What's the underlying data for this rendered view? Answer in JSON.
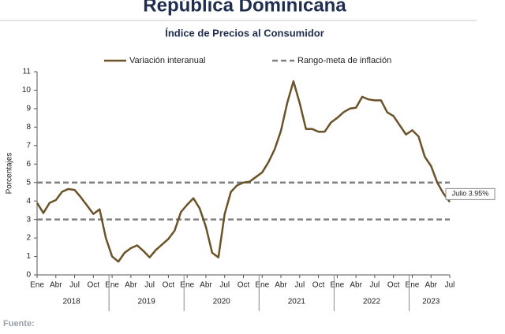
{
  "chart_data": {
    "type": "line",
    "title": "República Dominicana",
    "subtitle": "Índice de Precios al Consumidor",
    "y_label": "Porcentajes",
    "source": "Fuente:",
    "categories": [
      "Ene",
      null,
      null,
      "Abr",
      null,
      null,
      "Jul",
      null,
      null,
      "Oct",
      null,
      null,
      "Ene",
      null,
      null,
      "Abr",
      null,
      null,
      "Jul",
      null,
      null,
      "Oct",
      null,
      null,
      "Ene",
      null,
      null,
      "Abr",
      null,
      null,
      "Jul",
      null,
      null,
      "Oct",
      null,
      null,
      "Ene",
      null,
      null,
      "Abr",
      null,
      null,
      "Jul",
      null,
      null,
      "Oct",
      null,
      null,
      "Ene",
      null,
      null,
      "Abr",
      null,
      null,
      "Jul",
      null,
      null,
      "Oct",
      null,
      null,
      "Ene",
      null,
      null,
      "Abr",
      null,
      null,
      "Jul"
    ],
    "year_labels": [
      "2018",
      "2019",
      "2020",
      "2021",
      "2022",
      "2023"
    ],
    "series": [
      {
        "name": "Variación interanual",
        "color": "#6b5228",
        "values": [
          3.9,
          3.35,
          3.9,
          4.05,
          4.5,
          4.65,
          4.6,
          4.2,
          3.75,
          3.3,
          3.55,
          2.0,
          1.0,
          0.72,
          1.2,
          1.45,
          1.6,
          1.3,
          0.95,
          1.35,
          1.65,
          1.95,
          2.4,
          3.4,
          3.8,
          4.15,
          3.6,
          2.6,
          1.2,
          0.95,
          3.3,
          4.5,
          4.85,
          5.0,
          5.05,
          5.3,
          5.55,
          6.1,
          6.8,
          7.8,
          9.3,
          10.48,
          9.3,
          7.9,
          7.9,
          7.75,
          7.75,
          8.25,
          8.5,
          8.8,
          9.0,
          9.05,
          9.64,
          9.5,
          9.45,
          9.45,
          8.8,
          8.6,
          8.1,
          7.6,
          7.83,
          7.5,
          6.4,
          5.9,
          5.0,
          4.4,
          3.95
        ]
      }
    ],
    "reference_lines": {
      "name": "Rango-meta de inflación",
      "values": [
        3,
        5
      ],
      "color": "#808080"
    },
    "annotation": "Julio 3.95%",
    "ylim": [
      0,
      11
    ],
    "yticks": [
      0,
      1,
      2,
      3,
      4,
      5,
      6,
      7,
      8,
      9,
      10,
      11
    ]
  }
}
